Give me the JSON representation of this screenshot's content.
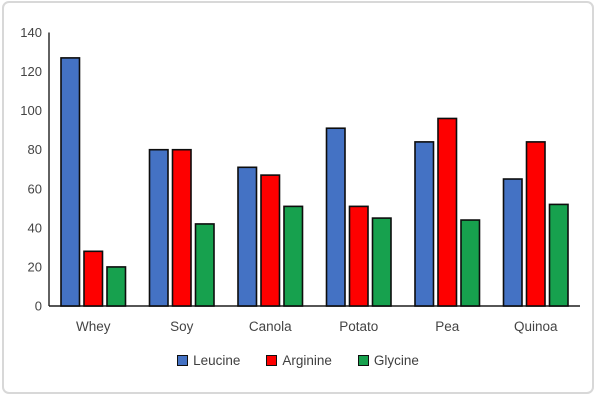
{
  "chart_data": {
    "type": "bar",
    "title": "",
    "xlabel": "",
    "ylabel": "",
    "categories": [
      "Whey",
      "Soy",
      "Canola",
      "Potato",
      "Pea",
      "Quinoa"
    ],
    "series": [
      {
        "name": "Leucine",
        "color": "#4472C4",
        "values": [
          127,
          80,
          71,
          91,
          84,
          65
        ]
      },
      {
        "name": "Arginine",
        "color": "#FE0000",
        "values": [
          28,
          80,
          67,
          51,
          96,
          84
        ]
      },
      {
        "name": "Glycine",
        "color": "#17A14E",
        "values": [
          20,
          42,
          51,
          45,
          44,
          52
        ]
      }
    ],
    "ylim": [
      0,
      140
    ],
    "yticks": [
      0,
      20,
      40,
      60,
      80,
      100,
      120,
      140
    ],
    "grid": false,
    "legend_position": "bottom",
    "bar_border_color": "#0d0d0d",
    "axis_color": "#1f1f1f",
    "label_color": "#444444"
  }
}
